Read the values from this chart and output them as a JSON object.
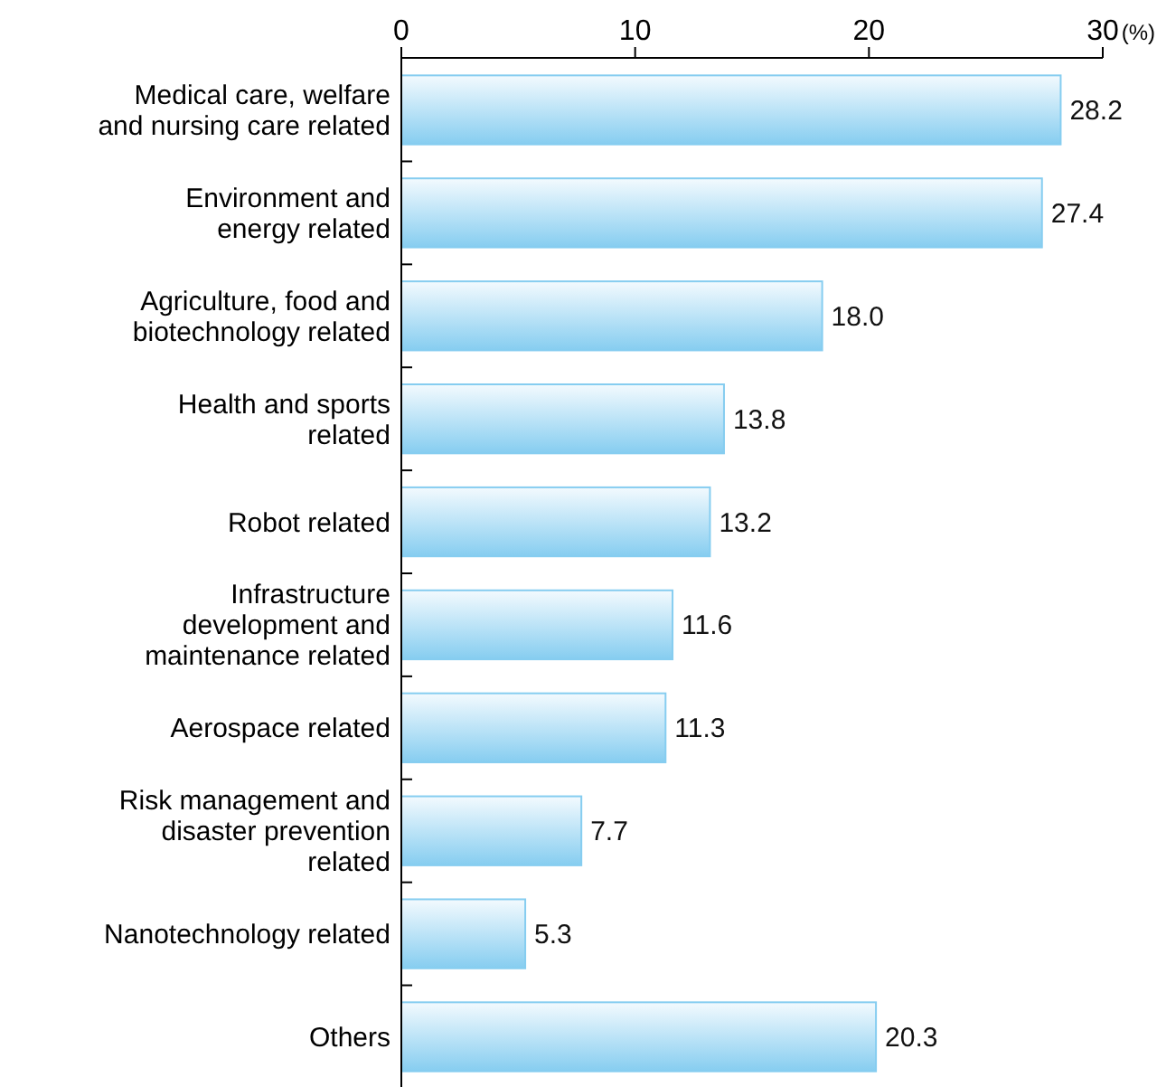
{
  "chart_data": {
    "type": "bar",
    "orientation": "horizontal",
    "xlabel": "(%)",
    "categories": [
      "Medical care, welfare\nand nursing care related",
      "Environment and\nenergy related",
      "Agriculture, food and\nbiotechnology related",
      "Health and sports\nrelated",
      "Robot related",
      "Infrastructure\ndevelopment and\nmaintenance related",
      "Aerospace related",
      "Risk management and\ndisaster prevention\nrelated",
      "Nanotechnology related",
      "Others"
    ],
    "values": [
      28.2,
      27.4,
      18.0,
      13.8,
      13.2,
      11.6,
      11.3,
      7.7,
      5.3,
      20.3
    ],
    "value_labels": [
      "28.2",
      "27.4",
      "18.0",
      "13.8",
      "13.2",
      "11.6",
      "11.3",
      "7.7",
      "5.3",
      "20.3"
    ],
    "color": "#86cdf0",
    "xlim": [
      0,
      30
    ],
    "xticks": [
      0,
      10,
      20,
      30
    ],
    "grid": false
  }
}
